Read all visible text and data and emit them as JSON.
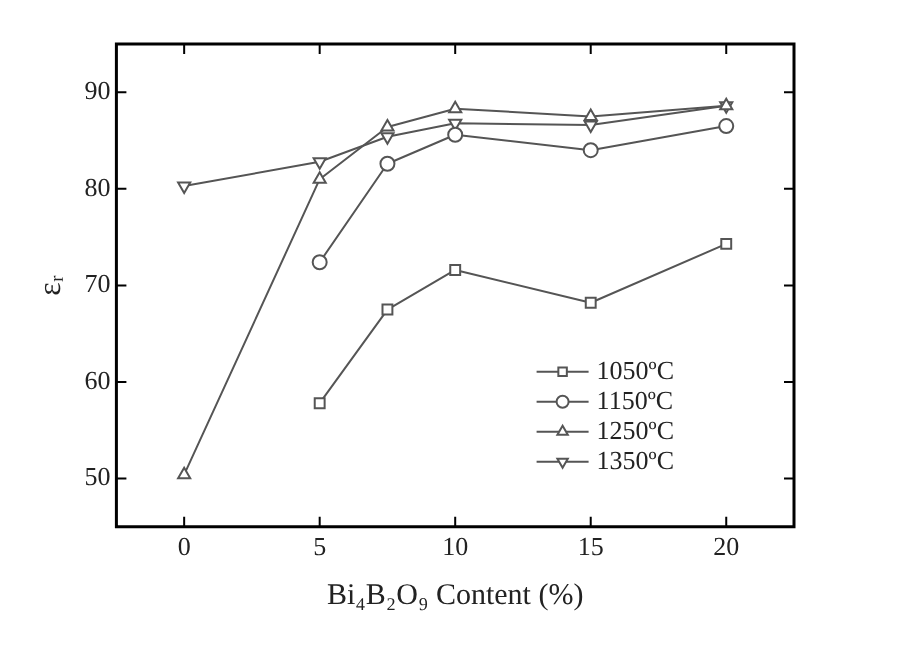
{
  "chart_data": {
    "type": "line",
    "xlabel": "Bi₄B₂O₉ Content (%)",
    "ylabel": "εᵣ",
    "xlim": [
      -2.5,
      22.5
    ],
    "xticks": [
      0,
      5,
      10,
      15,
      20
    ],
    "ylim": [
      45,
      95
    ],
    "yticks": [
      50,
      60,
      70,
      80,
      90
    ],
    "grid": false,
    "legend": "bottom right",
    "line_style": "solid",
    "series": [
      {
        "name": "1050ºC",
        "color": "#555555",
        "marker": "square",
        "x": [
          5,
          7.5,
          10,
          15,
          20
        ],
        "values": [
          57.8,
          67.5,
          71.6,
          68.2,
          74.3
        ]
      },
      {
        "name": "1150ºC",
        "color": "#555555",
        "marker": "circle",
        "x": [
          5,
          7.5,
          10,
          15,
          20
        ],
        "values": [
          72.4,
          82.6,
          85.6,
          84.0,
          86.5
        ]
      },
      {
        "name": "1250ºC",
        "color": "#555555",
        "marker": "triangle",
        "x": [
          0,
          5,
          7.5,
          10,
          15,
          20
        ],
        "values": [
          50.4,
          81.0,
          86.4,
          88.3,
          87.5,
          88.6
        ]
      },
      {
        "name": "1350ºC",
        "color": "#555555",
        "marker": "triangle-down",
        "x": [
          0,
          5,
          7.5,
          10,
          15,
          20
        ],
        "values": [
          80.3,
          82.8,
          85.4,
          86.8,
          86.6,
          88.6
        ]
      }
    ]
  }
}
